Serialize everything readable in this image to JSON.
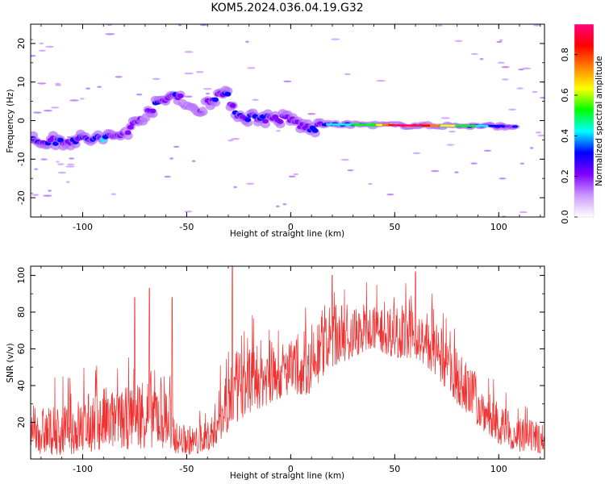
{
  "title": "KOM5.2024.036.04.19.G32",
  "chart_data": [
    {
      "type": "heatmap",
      "xlabel": "Height of straight line (km)",
      "ylabel": "Frequency (Hz)",
      "xlim": [
        -125,
        122
      ],
      "ylim": [
        -25,
        25
      ],
      "xticks": [
        -100,
        -50,
        0,
        50,
        100
      ],
      "yticks": [
        -20,
        -10,
        0,
        10,
        20
      ],
      "colorbar": {
        "label": "Normalized spectral amplitude",
        "range": [
          0.0,
          0.95
        ],
        "ticks": [
          "0.0",
          "0.2",
          "0.4",
          "0.6",
          "0.8"
        ],
        "colors": [
          "#ffffff",
          "#cc99ff",
          "#7f00ff",
          "#0000ff",
          "#00ffff",
          "#00ff00",
          "#ffff00",
          "#ff8000",
          "#ff0000",
          "#ff0080"
        ]
      },
      "ridge": [
        {
          "x": -125,
          "y": -5.5,
          "a": 0.35
        },
        {
          "x": -110,
          "y": -5.2,
          "a": 0.3
        },
        {
          "x": -100,
          "y": -4.8,
          "a": 0.35
        },
        {
          "x": -90,
          "y": -4.6,
          "a": 0.4
        },
        {
          "x": -82,
          "y": -3.8,
          "a": 0.25
        },
        {
          "x": -75,
          "y": -1.0,
          "a": 0.2
        },
        {
          "x": -70,
          "y": 2.0,
          "a": 0.25
        },
        {
          "x": -62,
          "y": 4.8,
          "a": 0.3
        },
        {
          "x": -55,
          "y": 7.2,
          "a": 0.28
        },
        {
          "x": -50,
          "y": 4.5,
          "a": 0.18
        },
        {
          "x": -46,
          "y": 1.5,
          "a": 0.15
        },
        {
          "x": -40,
          "y": 5.0,
          "a": 0.25
        },
        {
          "x": -34,
          "y": 7.0,
          "a": 0.3
        },
        {
          "x": -30,
          "y": 6.0,
          "a": 0.28
        },
        {
          "x": -25,
          "y": 1.2,
          "a": 0.35
        },
        {
          "x": -10,
          "y": 0.6,
          "a": 0.3
        },
        {
          "x": 0,
          "y": 0.3,
          "a": 0.25
        },
        {
          "x": 5,
          "y": -1.2,
          "a": 0.25
        },
        {
          "x": 10,
          "y": -2.4,
          "a": 0.3
        },
        {
          "x": 15,
          "y": -1.0,
          "a": 0.35
        },
        {
          "x": 25,
          "y": -1.0,
          "a": 0.45
        },
        {
          "x": 40,
          "y": -1.1,
          "a": 0.55
        },
        {
          "x": 50,
          "y": -1.2,
          "a": 0.95
        },
        {
          "x": 60,
          "y": -1.3,
          "a": 0.95
        },
        {
          "x": 75,
          "y": -1.3,
          "a": 0.6
        },
        {
          "x": 85,
          "y": -1.4,
          "a": 0.55
        },
        {
          "x": 95,
          "y": -1.4,
          "a": 0.35
        },
        {
          "x": 105,
          "y": -1.5,
          "a": 0.3
        }
      ]
    },
    {
      "type": "line",
      "xlabel": "Height of straight line (km)",
      "ylabel": "SNR (v/v)",
      "xlim": [
        -125,
        122
      ],
      "ylim": [
        0,
        105
      ],
      "xticks": [
        -100,
        -50,
        0,
        50,
        100
      ],
      "yticks": [
        20,
        40,
        60,
        80,
        100
      ],
      "color": "#f03030",
      "envelope": [
        {
          "x": -125,
          "lo": 3,
          "hi": 28
        },
        {
          "x": -110,
          "lo": 2,
          "hi": 30
        },
        {
          "x": -100,
          "lo": 3,
          "hi": 35
        },
        {
          "x": -90,
          "lo": 5,
          "hi": 40
        },
        {
          "x": -80,
          "lo": 5,
          "hi": 38
        },
        {
          "x": -70,
          "lo": 6,
          "hi": 50
        },
        {
          "x": -60,
          "lo": 6,
          "hi": 48
        },
        {
          "x": -55,
          "lo": 3,
          "hi": 20
        },
        {
          "x": -45,
          "lo": 2,
          "hi": 18
        },
        {
          "x": -38,
          "lo": 5,
          "hi": 25
        },
        {
          "x": -30,
          "lo": 15,
          "hi": 55
        },
        {
          "x": -20,
          "lo": 25,
          "hi": 65
        },
        {
          "x": -10,
          "lo": 30,
          "hi": 65
        },
        {
          "x": 0,
          "lo": 35,
          "hi": 65
        },
        {
          "x": 10,
          "lo": 35,
          "hi": 70
        },
        {
          "x": 20,
          "lo": 50,
          "hi": 85
        },
        {
          "x": 30,
          "lo": 55,
          "hi": 85
        },
        {
          "x": 40,
          "lo": 60,
          "hi": 85
        },
        {
          "x": 50,
          "lo": 55,
          "hi": 85
        },
        {
          "x": 60,
          "lo": 55,
          "hi": 80
        },
        {
          "x": 70,
          "lo": 45,
          "hi": 75
        },
        {
          "x": 80,
          "lo": 30,
          "hi": 60
        },
        {
          "x": 90,
          "lo": 18,
          "hi": 45
        },
        {
          "x": 100,
          "lo": 8,
          "hi": 30
        },
        {
          "x": 110,
          "lo": 4,
          "hi": 22
        },
        {
          "x": 122,
          "lo": 3,
          "hi": 20
        }
      ],
      "spikes": [
        {
          "x": -28,
          "y": 105
        },
        {
          "x": -75,
          "y": 88
        },
        {
          "x": -68,
          "y": 93
        },
        {
          "x": -57,
          "y": 88
        },
        {
          "x": 20,
          "y": 100
        },
        {
          "x": 60,
          "y": 102
        }
      ]
    }
  ]
}
